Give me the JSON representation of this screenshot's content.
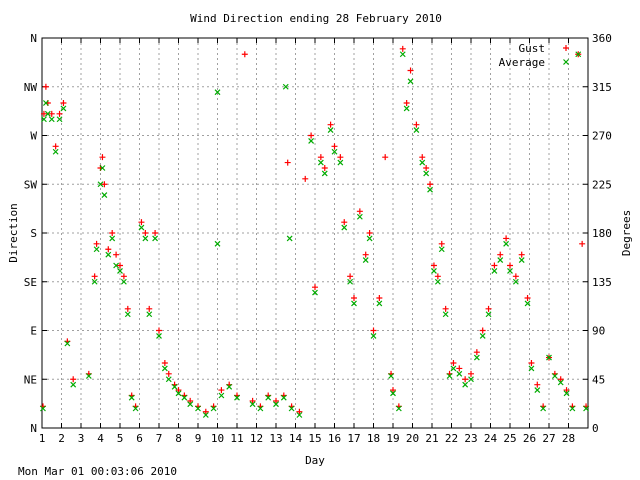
{
  "chart_data": {
    "type": "scatter",
    "title": "Wind Direction ending 28 February 2010",
    "xlabel": "Day",
    "ylabel": "Direction",
    "y2label": "Degrees",
    "footer": "Mon Mar 01 00:03:06 2010",
    "xlim": [
      1,
      29
    ],
    "ylim": [
      0,
      360
    ],
    "grid": true,
    "legend_position": "top-right",
    "x_ticks": [
      1,
      2,
      3,
      4,
      5,
      6,
      7,
      8,
      9,
      10,
      11,
      12,
      13,
      14,
      15,
      16,
      17,
      18,
      19,
      20,
      21,
      22,
      23,
      24,
      25,
      26,
      27,
      28
    ],
    "y_ticks_left": [
      {
        "value": 0,
        "label": "N"
      },
      {
        "value": 45,
        "label": "NE"
      },
      {
        "value": 90,
        "label": "E"
      },
      {
        "value": 135,
        "label": "SE"
      },
      {
        "value": 180,
        "label": "S"
      },
      {
        "value": 225,
        "label": "SW"
      },
      {
        "value": 270,
        "label": "W"
      },
      {
        "value": 315,
        "label": "NW"
      },
      {
        "value": 360,
        "label": "N"
      }
    ],
    "y_ticks_right": [
      0,
      45,
      90,
      135,
      180,
      225,
      270,
      315,
      360
    ],
    "series": [
      {
        "name": "Gust",
        "color": "#ff0000",
        "marker": "plus",
        "points": [
          [
            1.05,
            20
          ],
          [
            1.1,
            290
          ],
          [
            1.2,
            315
          ],
          [
            1.3,
            300
          ],
          [
            1.5,
            290
          ],
          [
            1.7,
            260
          ],
          [
            1.9,
            290
          ],
          [
            2.1,
            300
          ],
          [
            2.3,
            80
          ],
          [
            2.6,
            45
          ],
          [
            3.4,
            50
          ],
          [
            3.7,
            140
          ],
          [
            3.8,
            170
          ],
          [
            4.0,
            240
          ],
          [
            4.1,
            250
          ],
          [
            4.2,
            225
          ],
          [
            4.4,
            165
          ],
          [
            4.6,
            180
          ],
          [
            4.8,
            160
          ],
          [
            5.0,
            150
          ],
          [
            5.2,
            140
          ],
          [
            5.4,
            110
          ],
          [
            5.6,
            30
          ],
          [
            5.8,
            20
          ],
          [
            6.1,
            190
          ],
          [
            6.3,
            180
          ],
          [
            6.5,
            110
          ],
          [
            6.8,
            180
          ],
          [
            7.0,
            90
          ],
          [
            7.3,
            60
          ],
          [
            7.5,
            50
          ],
          [
            7.8,
            40
          ],
          [
            8.0,
            35
          ],
          [
            8.3,
            30
          ],
          [
            8.6,
            25
          ],
          [
            9.0,
            20
          ],
          [
            9.4,
            15
          ],
          [
            9.8,
            20
          ],
          [
            10.2,
            35
          ],
          [
            10.6,
            40
          ],
          [
            11.0,
            30
          ],
          [
            11.4,
            345
          ],
          [
            11.8,
            25
          ],
          [
            12.2,
            20
          ],
          [
            12.6,
            30
          ],
          [
            13.0,
            25
          ],
          [
            13.4,
            30
          ],
          [
            13.6,
            245
          ],
          [
            13.8,
            20
          ],
          [
            14.2,
            15
          ],
          [
            14.5,
            230
          ],
          [
            14.8,
            270
          ],
          [
            15.0,
            130
          ],
          [
            15.3,
            250
          ],
          [
            15.5,
            240
          ],
          [
            15.8,
            280
          ],
          [
            16.0,
            260
          ],
          [
            16.3,
            250
          ],
          [
            16.5,
            190
          ],
          [
            16.8,
            140
          ],
          [
            17.0,
            120
          ],
          [
            17.3,
            200
          ],
          [
            17.6,
            160
          ],
          [
            17.8,
            180
          ],
          [
            18.0,
            90
          ],
          [
            18.3,
            120
          ],
          [
            18.6,
            250
          ],
          [
            18.9,
            50
          ],
          [
            19.0,
            35
          ],
          [
            19.3,
            20
          ],
          [
            19.5,
            350
          ],
          [
            19.7,
            300
          ],
          [
            19.9,
            330
          ],
          [
            20.2,
            280
          ],
          [
            20.5,
            250
          ],
          [
            20.7,
            240
          ],
          [
            20.9,
            225
          ],
          [
            21.1,
            150
          ],
          [
            21.3,
            140
          ],
          [
            21.5,
            170
          ],
          [
            21.7,
            110
          ],
          [
            21.9,
            50
          ],
          [
            22.1,
            60
          ],
          [
            22.4,
            55
          ],
          [
            22.7,
            45
          ],
          [
            23.0,
            50
          ],
          [
            23.3,
            70
          ],
          [
            23.6,
            90
          ],
          [
            23.9,
            110
          ],
          [
            24.2,
            150
          ],
          [
            24.5,
            160
          ],
          [
            24.8,
            175
          ],
          [
            25.0,
            150
          ],
          [
            25.3,
            140
          ],
          [
            25.6,
            160
          ],
          [
            25.9,
            120
          ],
          [
            26.1,
            60
          ],
          [
            26.4,
            40
          ],
          [
            26.7,
            20
          ],
          [
            27.0,
            65
          ],
          [
            27.3,
            50
          ],
          [
            27.6,
            45
          ],
          [
            27.9,
            35
          ],
          [
            28.2,
            20
          ],
          [
            28.5,
            345
          ],
          [
            28.7,
            170
          ],
          [
            28.9,
            20
          ]
        ]
      },
      {
        "name": "Average",
        "color": "#00aa00",
        "marker": "x",
        "points": [
          [
            1.05,
            18
          ],
          [
            1.1,
            285
          ],
          [
            1.2,
            300
          ],
          [
            1.3,
            290
          ],
          [
            1.5,
            285
          ],
          [
            1.7,
            255
          ],
          [
            1.9,
            285
          ],
          [
            2.1,
            295
          ],
          [
            2.3,
            78
          ],
          [
            2.6,
            40
          ],
          [
            3.4,
            48
          ],
          [
            3.7,
            135
          ],
          [
            3.8,
            165
          ],
          [
            4.0,
            225
          ],
          [
            4.1,
            240
          ],
          [
            4.2,
            215
          ],
          [
            4.4,
            160
          ],
          [
            4.6,
            175
          ],
          [
            4.8,
            150
          ],
          [
            5.0,
            145
          ],
          [
            5.2,
            135
          ],
          [
            5.4,
            105
          ],
          [
            5.6,
            28
          ],
          [
            5.8,
            18
          ],
          [
            6.1,
            185
          ],
          [
            6.3,
            175
          ],
          [
            6.5,
            105
          ],
          [
            6.8,
            175
          ],
          [
            7.0,
            85
          ],
          [
            7.3,
            55
          ],
          [
            7.5,
            45
          ],
          [
            7.8,
            38
          ],
          [
            8.0,
            32
          ],
          [
            8.3,
            28
          ],
          [
            8.6,
            22
          ],
          [
            9.0,
            18
          ],
          [
            9.4,
            12
          ],
          [
            9.8,
            18
          ],
          [
            10.0,
            310
          ],
          [
            10.0,
            170
          ],
          [
            10.2,
            30
          ],
          [
            10.6,
            38
          ],
          [
            11.0,
            28
          ],
          [
            11.8,
            22
          ],
          [
            12.2,
            18
          ],
          [
            12.6,
            28
          ],
          [
            13.0,
            22
          ],
          [
            13.4,
            28
          ],
          [
            13.5,
            315
          ],
          [
            13.7,
            175
          ],
          [
            13.8,
            18
          ],
          [
            14.2,
            12
          ],
          [
            14.8,
            265
          ],
          [
            15.0,
            125
          ],
          [
            15.3,
            245
          ],
          [
            15.5,
            235
          ],
          [
            15.8,
            275
          ],
          [
            16.0,
            255
          ],
          [
            16.3,
            245
          ],
          [
            16.5,
            185
          ],
          [
            16.8,
            135
          ],
          [
            17.0,
            115
          ],
          [
            17.3,
            195
          ],
          [
            17.6,
            155
          ],
          [
            17.8,
            175
          ],
          [
            18.0,
            85
          ],
          [
            18.3,
            115
          ],
          [
            18.9,
            48
          ],
          [
            19.0,
            32
          ],
          [
            19.3,
            18
          ],
          [
            19.5,
            345
          ],
          [
            19.7,
            295
          ],
          [
            19.9,
            320
          ],
          [
            20.2,
            275
          ],
          [
            20.5,
            245
          ],
          [
            20.7,
            235
          ],
          [
            20.9,
            220
          ],
          [
            21.1,
            145
          ],
          [
            21.3,
            135
          ],
          [
            21.5,
            165
          ],
          [
            21.7,
            105
          ],
          [
            21.9,
            48
          ],
          [
            22.1,
            55
          ],
          [
            22.4,
            50
          ],
          [
            22.7,
            40
          ],
          [
            23.0,
            45
          ],
          [
            23.3,
            65
          ],
          [
            23.6,
            85
          ],
          [
            23.9,
            105
          ],
          [
            24.2,
            145
          ],
          [
            24.5,
            155
          ],
          [
            24.8,
            170
          ],
          [
            25.0,
            145
          ],
          [
            25.3,
            135
          ],
          [
            25.6,
            155
          ],
          [
            25.9,
            115
          ],
          [
            26.1,
            55
          ],
          [
            26.4,
            35
          ],
          [
            26.7,
            18
          ],
          [
            27.0,
            65
          ],
          [
            27.3,
            48
          ],
          [
            27.6,
            42
          ],
          [
            27.9,
            32
          ],
          [
            28.2,
            18
          ],
          [
            28.5,
            345
          ],
          [
            28.9,
            18
          ]
        ]
      }
    ]
  }
}
